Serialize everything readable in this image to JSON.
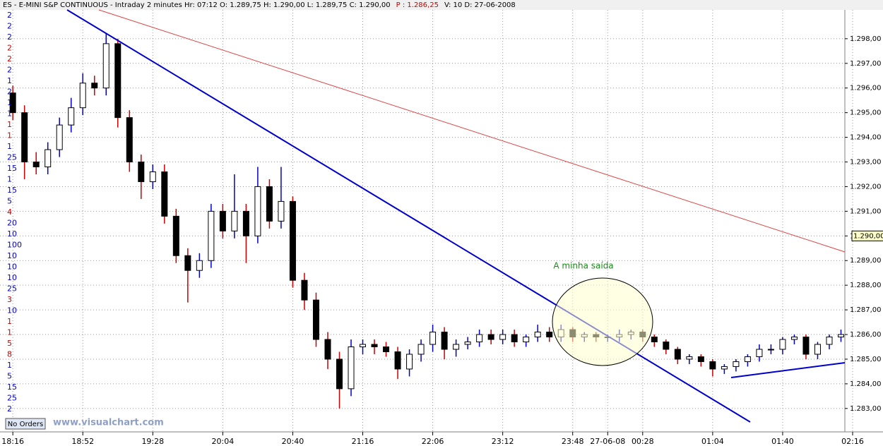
{
  "header": [
    {
      "text": "ES - E-MINI S&P CONTINUOUS - Intraday 2 minutes  Hr: 07:12  O: 1.289,75  H: 1.290,00  L: 1.289,75  C: 1.290,00",
      "color": "#000000"
    },
    {
      "text": "P : 1.286,25",
      "color": "#cc0000"
    },
    {
      "text": "V: 10  D: 27-06-2008",
      "color": "#000000"
    }
  ],
  "left_labels": [
    {
      "text": "2",
      "color": "#0000cc"
    },
    {
      "text": "2",
      "color": "#0000cc"
    },
    {
      "text": "2",
      "color": "#0000cc"
    },
    {
      "text": "2",
      "color": "#cc0000"
    },
    {
      "text": "2",
      "color": "#cc0000"
    },
    {
      "text": "2",
      "color": "#0000cc"
    },
    {
      "text": "1",
      "color": "#0000cc"
    },
    {
      "text": "2",
      "color": "#0000cc"
    },
    {
      "text": "1",
      "color": "#0000cc"
    },
    {
      "text": "1",
      "color": "#0000cc"
    },
    {
      "text": "1",
      "color": "#cc0000"
    },
    {
      "text": "1",
      "color": "#cc0000"
    },
    {
      "text": "1",
      "color": "#0000cc"
    },
    {
      "text": "25",
      "color": "#0000cc"
    },
    {
      "text": "15",
      "color": "#0000cc"
    },
    {
      "text": "1",
      "color": "#0000cc"
    },
    {
      "text": "15",
      "color": "#0000cc"
    },
    {
      "text": "5",
      "color": "#0000cc"
    },
    {
      "text": "4",
      "color": "#cc0000"
    },
    {
      "text": "20",
      "color": "#0000cc"
    },
    {
      "text": "10",
      "color": "#0000cc"
    },
    {
      "text": "100",
      "color": "#0000cc"
    },
    {
      "text": "10",
      "color": "#0000cc"
    },
    {
      "text": "10",
      "color": "#0000cc"
    },
    {
      "text": "10",
      "color": "#0000cc"
    },
    {
      "text": "25",
      "color": "#0000cc"
    },
    {
      "text": "3",
      "color": "#cc0000"
    },
    {
      "text": "10",
      "color": "#0000cc"
    },
    {
      "text": "1",
      "color": "#cc0000"
    },
    {
      "text": "1",
      "color": "#cc0000"
    },
    {
      "text": "5",
      "color": "#cc0000"
    },
    {
      "text": "8",
      "color": "#cc0000"
    },
    {
      "text": "1",
      "color": "#0000cc"
    },
    {
      "text": "5",
      "color": "#0000cc"
    },
    {
      "text": "15",
      "color": "#0000cc"
    },
    {
      "text": "25",
      "color": "#0000cc"
    },
    {
      "text": "2",
      "color": "#0000cc"
    }
  ],
  "button": "No Orders",
  "watermark": "www.visualchart.com",
  "chart_data": {
    "type": "candlestick",
    "annotation": "A minha saída",
    "x": [
      0,
      3,
      6,
      9,
      12,
      15,
      18,
      21,
      24,
      27,
      30,
      33,
      36,
      39,
      42,
      45,
      48,
      51,
      54,
      57,
      60,
      63,
      66,
      69,
      72,
      75,
      78,
      81,
      84,
      87,
      90,
      93,
      96,
      99,
      102,
      105,
      108,
      111,
      114,
      117,
      120,
      123,
      126,
      129,
      132,
      135,
      138,
      141,
      144,
      147,
      150,
      153,
      156,
      159,
      162,
      165,
      168,
      171,
      174,
      177,
      180,
      183,
      186,
      189,
      192,
      195,
      198,
      201,
      204,
      207,
      210,
      213
    ],
    "open": [
      1295.8,
      1295.0,
      1293.0,
      1292.8,
      1293.5,
      1294.5,
      1295.2,
      1296.2,
      1296.0,
      1297.8,
      1294.8,
      1293.0,
      1292.2,
      1292.6,
      1290.8,
      1289.2,
      1288.6,
      1289.0,
      1291.0,
      1290.2,
      1291.0,
      1290.0,
      1292.0,
      1290.6,
      1291.4,
      1288.2,
      1287.4,
      1285.8,
      1285.0,
      1283.8,
      1285.5,
      1285.6,
      1285.5,
      1285.3,
      1284.6,
      1285.2,
      1285.6,
      1286.1,
      1285.4,
      1285.6,
      1285.7,
      1286.0,
      1285.8,
      1286.0,
      1285.7,
      1285.9,
      1286.1,
      1285.9,
      1286.2,
      1285.9,
      1286.0,
      1285.9,
      1285.9,
      1286.0,
      1286.1,
      1285.9,
      1285.7,
      1285.4,
      1285.0,
      1285.1,
      1284.9,
      1284.6,
      1284.7,
      1284.9,
      1285.1,
      1285.4,
      1285.4,
      1285.8,
      1285.9,
      1285.2,
      1285.6,
      1285.9
    ],
    "high": [
      1296.1,
      1295.3,
      1293.4,
      1293.8,
      1294.8,
      1295.6,
      1296.6,
      1296.5,
      1298.2,
      1298.0,
      1295.1,
      1293.3,
      1292.9,
      1292.9,
      1291.1,
      1289.5,
      1289.3,
      1291.3,
      1291.3,
      1292.5,
      1291.3,
      1292.8,
      1292.3,
      1292.8,
      1291.6,
      1288.5,
      1287.7,
      1286.1,
      1285.3,
      1285.8,
      1285.8,
      1285.8,
      1285.7,
      1285.5,
      1285.4,
      1285.8,
      1286.4,
      1286.3,
      1285.8,
      1285.9,
      1286.2,
      1286.2,
      1286.2,
      1286.2,
      1286.0,
      1286.4,
      1286.3,
      1286.4,
      1286.3,
      1286.1,
      1286.1,
      1286.0,
      1286.2,
      1286.2,
      1286.2,
      1286.0,
      1285.8,
      1285.5,
      1285.2,
      1285.2,
      1285.0,
      1284.8,
      1285.0,
      1285.2,
      1285.6,
      1285.6,
      1285.9,
      1286.0,
      1286.0,
      1285.7,
      1286.0,
      1286.2
    ],
    "low": [
      1294.7,
      1292.3,
      1292.5,
      1292.5,
      1293.2,
      1294.2,
      1294.9,
      1295.7,
      1295.7,
      1294.4,
      1292.6,
      1291.5,
      1291.9,
      1290.5,
      1288.9,
      1287.3,
      1288.3,
      1288.7,
      1289.9,
      1289.9,
      1288.9,
      1289.7,
      1290.3,
      1290.3,
      1287.9,
      1287.0,
      1285.5,
      1284.6,
      1283.0,
      1283.5,
      1285.2,
      1285.2,
      1285.1,
      1284.2,
      1284.3,
      1284.9,
      1285.3,
      1285.0,
      1285.1,
      1285.4,
      1285.5,
      1285.6,
      1285.6,
      1285.5,
      1285.5,
      1285.7,
      1285.7,
      1285.7,
      1285.7,
      1285.7,
      1285.7,
      1285.7,
      1285.7,
      1285.8,
      1285.7,
      1285.5,
      1285.2,
      1284.8,
      1284.8,
      1284.7,
      1284.3,
      1284.4,
      1284.5,
      1284.7,
      1284.9,
      1285.2,
      1285.2,
      1285.6,
      1285.0,
      1285.0,
      1285.4,
      1285.7
    ],
    "close": [
      1295.0,
      1293.0,
      1292.8,
      1293.5,
      1294.5,
      1295.2,
      1296.2,
      1296.0,
      1297.8,
      1294.8,
      1293.0,
      1292.2,
      1292.6,
      1290.8,
      1289.2,
      1288.6,
      1289.0,
      1291.0,
      1290.2,
      1291.0,
      1290.0,
      1292.0,
      1290.6,
      1291.4,
      1288.2,
      1287.4,
      1285.8,
      1285.0,
      1283.8,
      1285.5,
      1285.6,
      1285.5,
      1285.3,
      1284.6,
      1285.2,
      1285.6,
      1286.1,
      1285.4,
      1285.6,
      1285.7,
      1286.0,
      1285.8,
      1286.0,
      1285.7,
      1285.9,
      1286.1,
      1285.9,
      1286.2,
      1285.9,
      1286.0,
      1285.9,
      1285.9,
      1286.0,
      1286.1,
      1285.9,
      1285.7,
      1285.4,
      1285.0,
      1285.1,
      1284.9,
      1284.6,
      1284.7,
      1284.9,
      1285.1,
      1285.4,
      1285.4,
      1285.8,
      1285.9,
      1285.2,
      1285.6,
      1285.9,
      1286.0
    ],
    "up_color": "#ffffff",
    "down_color": "#000000",
    "xlim": [
      -3.3,
      214
    ],
    "ylim": [
      1282.05,
      1299.17
    ],
    "xticks": [
      {
        "value": 0,
        "label": "18:16"
      },
      {
        "value": 18,
        "label": "18:52"
      },
      {
        "value": 36,
        "label": "19:28"
      },
      {
        "value": 54,
        "label": "20:04"
      },
      {
        "value": 72,
        "label": "20:40"
      },
      {
        "value": 90,
        "label": "21:16"
      },
      {
        "value": 108,
        "label": "22:06"
      },
      {
        "value": 126,
        "label": "23:12"
      },
      {
        "value": 144,
        "label": "23:48"
      },
      {
        "value": 153,
        "label": "27-06-08"
      },
      {
        "value": 162,
        "label": "00:28"
      },
      {
        "value": 180,
        "label": "01:04"
      },
      {
        "value": 198,
        "label": "01:40"
      },
      {
        "value": 216,
        "label": "02:16"
      }
    ],
    "yticks": [
      {
        "value": 1283,
        "label": "1.283,00"
      },
      {
        "value": 1284,
        "label": "1.284,00"
      },
      {
        "value": 1285,
        "label": "1.285,00"
      },
      {
        "value": 1286,
        "label": "1.286,00"
      },
      {
        "value": 1287,
        "label": "1.287,00"
      },
      {
        "value": 1288,
        "label": "1.288,00"
      },
      {
        "value": 1289,
        "label": "1.289,00"
      },
      {
        "value": 1290,
        "label": "1.290,00"
      },
      {
        "value": 1291,
        "label": "1.291,00"
      },
      {
        "value": 1292,
        "label": "1.292,00"
      },
      {
        "value": 1293,
        "label": "1.293,00"
      },
      {
        "value": 1294,
        "label": "1.294,00"
      },
      {
        "value": 1295,
        "label": "1.295,00"
      },
      {
        "value": 1296,
        "label": "1.296,00"
      },
      {
        "value": 1297,
        "label": "1.297,00"
      },
      {
        "value": 1298,
        "label": "1.298,00"
      }
    ],
    "last_price": {
      "value": 1290,
      "label": "1.290,00"
    },
    "grid": true
  }
}
